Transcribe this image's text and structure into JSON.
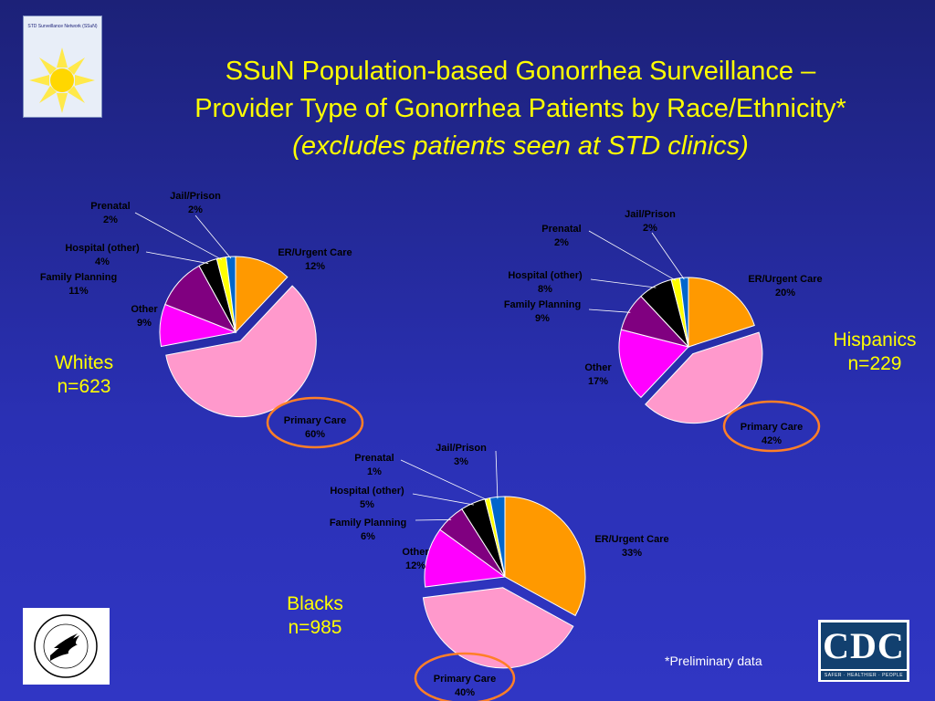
{
  "title": {
    "line1": "SSuN Population-based Gonorrhea Surveillance –",
    "line2": "Provider Type of Gonorrhea Patients by Race/Ethnicity*",
    "line3": "(excludes patients seen at STD clinics)"
  },
  "logos": {
    "ssun": "STD Surveillance Network (SSuN)",
    "cdc": "CDC",
    "cdc_tagline": "SAFER · HEALTHIER · PEOPLE"
  },
  "footnote": "*Preliminary data",
  "colors": {
    "ER/Urgent Care": "#ff9900",
    "Primary Care": "#ff99cc",
    "Other": "#ff00ff",
    "Family Planning": "#800080",
    "Hospital (other)": "#000000",
    "Prenatal": "#ffff00",
    "Jail/Prison": "#0066cc",
    "highlight_ring": "#ff7f27",
    "title": "#ffff00"
  },
  "groups": [
    {
      "name": "Whites",
      "n": "n=623"
    },
    {
      "name": "Hispanics",
      "n": "n=229"
    },
    {
      "name": "Blacks",
      "n": "n=985"
    }
  ],
  "chart_data": [
    {
      "type": "pie",
      "group": "Whites",
      "n": "n=623",
      "categories": [
        "ER/Urgent Care",
        "Primary Care",
        "Other",
        "Family Planning",
        "Hospital (other)",
        "Prenatal",
        "Jail/Prison"
      ],
      "values": [
        12,
        60,
        9,
        11,
        4,
        2,
        2
      ],
      "labels": [
        "12%",
        "60%",
        "9%",
        "11%",
        "4%",
        "2%",
        "2%"
      ],
      "highlighted": "Primary Care"
    },
    {
      "type": "pie",
      "group": "Hispanics",
      "n": "n=229",
      "categories": [
        "ER/Urgent Care",
        "Primary Care",
        "Other",
        "Family Planning",
        "Hospital (other)",
        "Prenatal",
        "Jail/Prison"
      ],
      "values": [
        20,
        42,
        17,
        9,
        8,
        2,
        2
      ],
      "labels": [
        "20%",
        "42%",
        "17%",
        "9%",
        "8%",
        "2%",
        "2%"
      ],
      "highlighted": "Primary Care"
    },
    {
      "type": "pie",
      "group": "Blacks",
      "n": "n=985",
      "categories": [
        "ER/Urgent Care",
        "Primary Care",
        "Other",
        "Family Planning",
        "Hospital (other)",
        "Prenatal",
        "Jail/Prison"
      ],
      "values": [
        33,
        40,
        12,
        6,
        5,
        1,
        3
      ],
      "labels": [
        "33%",
        "40%",
        "12%",
        "6%",
        "5%",
        "1%",
        "3%"
      ],
      "highlighted": "Primary Care"
    }
  ]
}
